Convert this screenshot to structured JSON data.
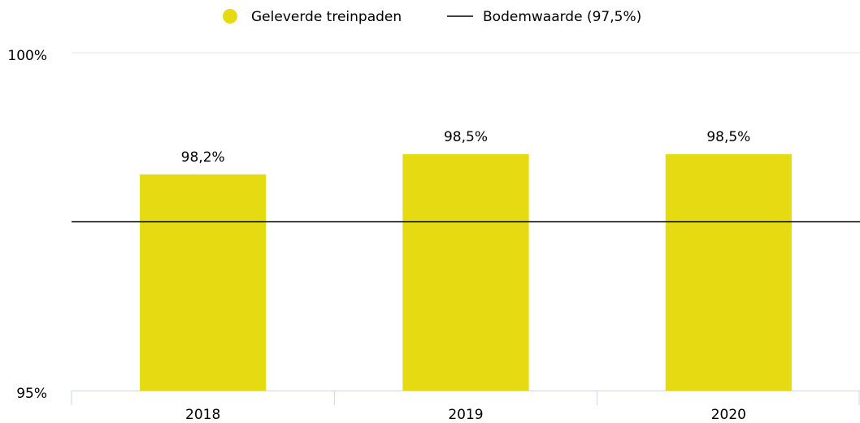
{
  "chart_data": {
    "type": "bar",
    "categories": [
      "2018",
      "2019",
      "2020"
    ],
    "series": [
      {
        "name": "Geleverde treinpaden",
        "color": "#e6da12",
        "values": [
          98.2,
          98.5,
          98.5
        ],
        "value_labels": [
          "98,2%",
          "98,5%",
          "98,5%"
        ]
      }
    ],
    "reference_line": {
      "name": "Bodemwaarde (97,5%)",
      "value": 97.5,
      "color": "#000000"
    },
    "ylim": [
      95,
      100
    ],
    "yticks": [
      {
        "value": 95,
        "label": "95%"
      },
      {
        "value": 100,
        "label": "100%"
      }
    ],
    "grid": true,
    "legend": "top"
  }
}
